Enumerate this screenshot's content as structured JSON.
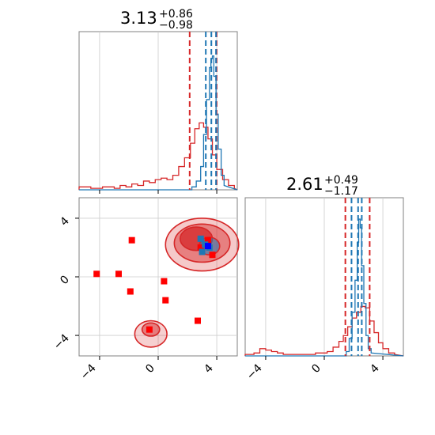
{
  "chart_data": {
    "type": "corner",
    "colors": {
      "blue": "#1f77b4",
      "red": "#d62728",
      "marker_red": "#ff0000",
      "marker_blue": "#0000ff",
      "grid": "#cccccc"
    },
    "params": [
      {
        "median": 3.13,
        "title": "3.13",
        "sup": "+0.86",
        "sub": "−0.98",
        "red_quantiles": [
          2.15,
          3.99
        ],
        "blue_quantiles": [
          3.25,
          3.63,
          3.95
        ]
      },
      {
        "median": 2.61,
        "title": "2.61",
        "sup": "+0.49",
        "sub": "−1.17",
        "red_quantiles": [
          1.44,
          3.1
        ],
        "blue_quantiles": [
          1.86,
          2.31,
          2.56
        ]
      }
    ],
    "axes": {
      "x0_range": [
        -5.4,
        5.4
      ],
      "x1_range": [
        -5.4,
        5.4
      ],
      "tick_labels": [
        "−4",
        "0",
        "4"
      ],
      "tick_values": [
        -4,
        0,
        4
      ]
    },
    "scatter_red_squares": [
      [
        -1.8,
        2.5
      ],
      [
        -4.2,
        0.2
      ],
      [
        -2.7,
        0.2
      ],
      [
        -1.9,
        -1.0
      ],
      [
        0.4,
        -0.3
      ],
      [
        0.5,
        -1.6
      ],
      [
        -0.6,
        -3.6
      ],
      [
        2.7,
        -3.0
      ],
      [
        3.7,
        1.5
      ],
      [
        3.4,
        2.5
      ],
      [
        2.9,
        2.0
      ]
    ],
    "scatter_blue_squares": [
      [
        2.9,
        2.6
      ],
      [
        3.2,
        2.2
      ],
      [
        3.5,
        2.0
      ],
      [
        3.0,
        1.7
      ]
    ],
    "marker_purple": [
      3.4,
      2.1
    ],
    "hist0_red": [
      [
        -5.4,
        0.02
      ],
      [
        -4.6,
        0.01
      ],
      [
        -3.8,
        0.02
      ],
      [
        -3.0,
        0.01
      ],
      [
        -2.6,
        0.03
      ],
      [
        -2.2,
        0.02
      ],
      [
        -1.8,
        0.04
      ],
      [
        -1.4,
        0.03
      ],
      [
        -1.0,
        0.06
      ],
      [
        -0.6,
        0.05
      ],
      [
        -0.2,
        0.07
      ],
      [
        0.2,
        0.08
      ],
      [
        0.6,
        0.07
      ],
      [
        1.0,
        0.1
      ],
      [
        1.4,
        0.16
      ],
      [
        1.8,
        0.22
      ],
      [
        2.2,
        0.32
      ],
      [
        2.5,
        0.42
      ],
      [
        2.8,
        0.46
      ],
      [
        3.1,
        0.43
      ],
      [
        3.4,
        0.35
      ],
      [
        3.7,
        0.24
      ],
      [
        4.0,
        0.14
      ],
      [
        4.4,
        0.07
      ],
      [
        4.8,
        0.03
      ],
      [
        5.2,
        0.01
      ]
    ],
    "hist0_blue": [
      [
        2.3,
        0.02
      ],
      [
        2.6,
        0.06
      ],
      [
        2.9,
        0.16
      ],
      [
        3.1,
        0.38
      ],
      [
        3.3,
        0.62
      ],
      [
        3.5,
        0.84
      ],
      [
        3.6,
        0.9
      ],
      [
        3.7,
        0.92
      ],
      [
        3.8,
        0.78
      ],
      [
        3.95,
        0.52
      ],
      [
        4.1,
        0.28
      ],
      [
        4.3,
        0.1
      ],
      [
        4.5,
        0.03
      ]
    ],
    "hist1_red": [
      [
        -5.4,
        0.01
      ],
      [
        -4.8,
        0.02
      ],
      [
        -4.4,
        0.05
      ],
      [
        -4.0,
        0.04
      ],
      [
        -3.6,
        0.03
      ],
      [
        -3.2,
        0.02
      ],
      [
        -2.8,
        0.01
      ],
      [
        -1.2,
        0.01
      ],
      [
        -0.6,
        0.02
      ],
      [
        0.2,
        0.03
      ],
      [
        0.6,
        0.06
      ],
      [
        1.0,
        0.1
      ],
      [
        1.3,
        0.14
      ],
      [
        1.6,
        0.2
      ],
      [
        1.9,
        0.26
      ],
      [
        2.2,
        0.3
      ],
      [
        2.5,
        0.34
      ],
      [
        2.8,
        0.33
      ],
      [
        3.1,
        0.24
      ],
      [
        3.4,
        0.16
      ],
      [
        3.7,
        0.09
      ],
      [
        4.0,
        0.05
      ],
      [
        4.4,
        0.02
      ],
      [
        4.8,
        0.01
      ]
    ],
    "hist1_blue": [
      [
        1.5,
        0.03
      ],
      [
        1.7,
        0.12
      ],
      [
        1.9,
        0.3
      ],
      [
        2.1,
        0.52
      ],
      [
        2.25,
        0.78
      ],
      [
        2.35,
        0.94
      ],
      [
        2.45,
        0.88
      ],
      [
        2.55,
        0.62
      ],
      [
        2.7,
        0.36
      ],
      [
        2.85,
        0.14
      ],
      [
        3.0,
        0.05
      ],
      [
        3.2,
        0.02
      ]
    ]
  }
}
